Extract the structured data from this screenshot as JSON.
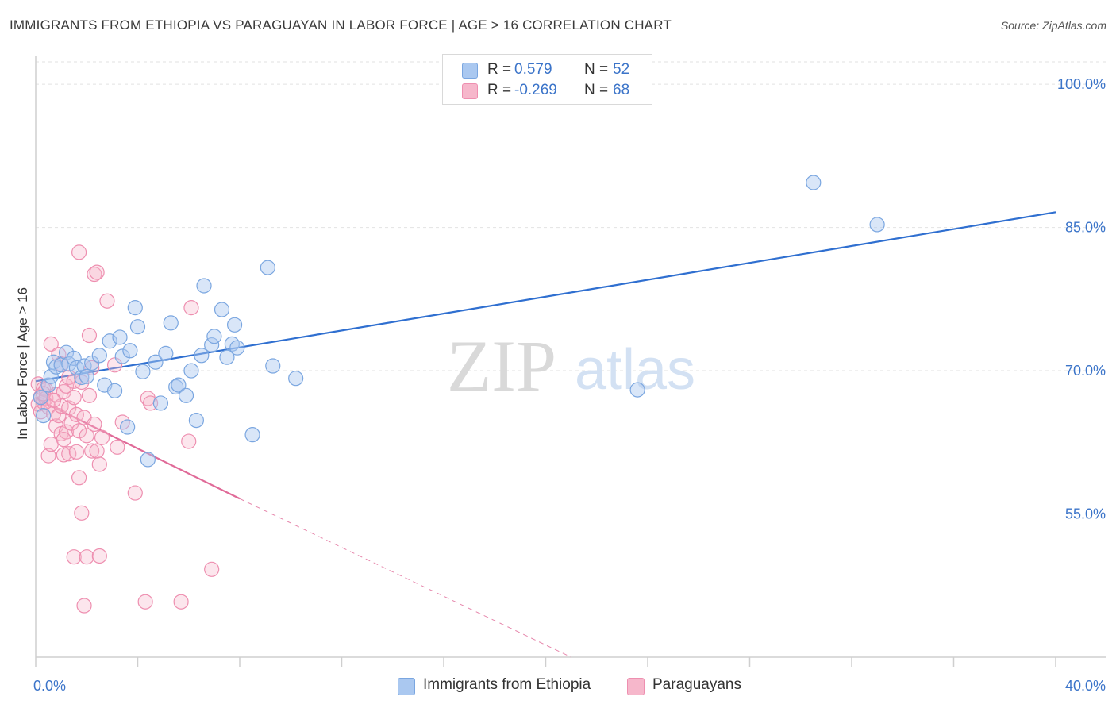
{
  "header": {
    "title": "IMMIGRANTS FROM ETHIOPIA VS PARAGUAYAN IN LABOR FORCE | AGE > 16 CORRELATION CHART",
    "source": "Source: ZipAtlas.com"
  },
  "legend": {
    "rows": [
      {
        "r_label": "R =",
        "r_value": "0.579",
        "n_label": "N =",
        "n_value": "52"
      },
      {
        "r_label": "R =",
        "r_value": "-0.269",
        "n_label": "N =",
        "n_value": "68"
      }
    ]
  },
  "bottom_legend": {
    "series1": "Immigrants from Ethiopia",
    "series2": "Paraguayans"
  },
  "watermark": {
    "zip": "ZIP",
    "atlas": "atlas"
  },
  "colors": {
    "blue_fill": "#aac8f0",
    "blue_stroke": "#7aa6e0",
    "blue_line": "#2f6fd0",
    "pink_fill": "#f6b7cb",
    "pink_stroke": "#ee8fb0",
    "pink_line": "#e06a98",
    "tick_label": "#3b74c9",
    "grid": "#e2e2e2"
  },
  "chart_data": {
    "type": "scatter",
    "title": "IMMIGRANTS FROM ETHIOPIA VS PARAGUAYAN IN LABOR FORCE | AGE > 16 CORRELATION CHART",
    "xlabel": "",
    "ylabel": "In Labor Force | Age > 16",
    "xlim": [
      0,
      40
    ],
    "ylim": [
      40,
      103
    ],
    "x_tick_labels": [
      "0.0%",
      "40.0%"
    ],
    "y_ticks": [
      55,
      70,
      85,
      100
    ],
    "y_tick_labels": [
      "55.0%",
      "70.0%",
      "85.0%",
      "100.0%"
    ],
    "grid": true,
    "legend_position": "top-center",
    "series": [
      {
        "name": "Immigrants from Ethiopia",
        "R": 0.579,
        "N": 52,
        "trend": {
          "x": [
            0.0,
            40.0
          ],
          "y": [
            68.9,
            86.6
          ],
          "extrapolated_to": 40.0
        },
        "points": [
          [
            0.2,
            67.2
          ],
          [
            0.3,
            65.3
          ],
          [
            0.5,
            68.5
          ],
          [
            0.6,
            69.4
          ],
          [
            0.7,
            70.9
          ],
          [
            0.8,
            70.4
          ],
          [
            1.0,
            70.6
          ],
          [
            1.2,
            71.9
          ],
          [
            1.3,
            70.7
          ],
          [
            1.5,
            71.3
          ],
          [
            1.6,
            70.3
          ],
          [
            1.8,
            69.3
          ],
          [
            1.9,
            70.5
          ],
          [
            2.0,
            69.4
          ],
          [
            2.2,
            70.8
          ],
          [
            2.5,
            71.6
          ],
          [
            2.7,
            68.5
          ],
          [
            2.9,
            73.1
          ],
          [
            3.1,
            67.9
          ],
          [
            3.3,
            73.5
          ],
          [
            3.4,
            71.5
          ],
          [
            3.6,
            64.1
          ],
          [
            3.7,
            72.1
          ],
          [
            3.9,
            76.6
          ],
          [
            4.0,
            74.6
          ],
          [
            4.2,
            69.9
          ],
          [
            4.4,
            60.7
          ],
          [
            4.7,
            70.9
          ],
          [
            4.9,
            66.6
          ],
          [
            5.1,
            71.8
          ],
          [
            5.3,
            75.0
          ],
          [
            5.5,
            68.3
          ],
          [
            5.6,
            68.5
          ],
          [
            5.9,
            67.4
          ],
          [
            6.1,
            70.0
          ],
          [
            6.3,
            64.8
          ],
          [
            6.5,
            71.6
          ],
          [
            6.6,
            78.9
          ],
          [
            6.9,
            72.7
          ],
          [
            7.0,
            73.6
          ],
          [
            7.3,
            76.4
          ],
          [
            7.5,
            71.4
          ],
          [
            7.7,
            72.8
          ],
          [
            7.8,
            74.8
          ],
          [
            7.9,
            72.4
          ],
          [
            8.5,
            63.3
          ],
          [
            9.1,
            80.8
          ],
          [
            9.3,
            70.5
          ],
          [
            10.2,
            69.2
          ],
          [
            23.6,
            68.0
          ],
          [
            30.5,
            89.7
          ],
          [
            33.0,
            85.3
          ]
        ]
      },
      {
        "name": "Paraguayans",
        "R": -0.269,
        "N": 68,
        "trend": {
          "x": [
            0.0,
            8.0
          ],
          "y": [
            67.1,
            56.6
          ],
          "dashed_x": [
            8.0,
            21.0
          ],
          "dashed_y": [
            56.6,
            40.0
          ]
        },
        "points": [
          [
            0.1,
            66.5
          ],
          [
            0.1,
            68.6
          ],
          [
            0.2,
            67.3
          ],
          [
            0.2,
            65.7
          ],
          [
            0.3,
            68.1
          ],
          [
            0.3,
            66.7
          ],
          [
            0.4,
            68.0
          ],
          [
            0.4,
            67.1
          ],
          [
            0.5,
            66.2
          ],
          [
            0.5,
            61.1
          ],
          [
            0.6,
            72.8
          ],
          [
            0.6,
            62.3
          ],
          [
            0.7,
            65.5
          ],
          [
            0.8,
            67.5
          ],
          [
            0.8,
            64.2
          ],
          [
            0.9,
            71.7
          ],
          [
            0.9,
            65.3
          ],
          [
            1.0,
            70.7
          ],
          [
            1.0,
            66.3
          ],
          [
            1.0,
            63.4
          ],
          [
            1.1,
            61.2
          ],
          [
            1.1,
            67.8
          ],
          [
            1.2,
            68.4
          ],
          [
            1.2,
            63.6
          ],
          [
            1.3,
            66.1
          ],
          [
            1.3,
            69.3
          ],
          [
            1.3,
            61.3
          ],
          [
            1.4,
            64.5
          ],
          [
            1.5,
            67.2
          ],
          [
            1.5,
            68.9
          ],
          [
            1.5,
            50.5
          ],
          [
            1.6,
            61.5
          ],
          [
            1.6,
            65.4
          ],
          [
            1.7,
            58.8
          ],
          [
            1.7,
            82.4
          ],
          [
            1.7,
            63.7
          ],
          [
            1.8,
            68.8
          ],
          [
            1.8,
            55.1
          ],
          [
            1.9,
            65.1
          ],
          [
            1.9,
            45.4
          ],
          [
            2.0,
            63.2
          ],
          [
            2.0,
            50.5
          ],
          [
            2.1,
            67.4
          ],
          [
            2.1,
            73.7
          ],
          [
            2.2,
            70.3
          ],
          [
            2.2,
            61.6
          ],
          [
            2.3,
            64.4
          ],
          [
            2.3,
            80.1
          ],
          [
            2.4,
            80.3
          ],
          [
            2.4,
            61.6
          ],
          [
            2.5,
            50.6
          ],
          [
            2.5,
            60.2
          ],
          [
            2.6,
            63.0
          ],
          [
            2.8,
            77.3
          ],
          [
            3.1,
            70.6
          ],
          [
            3.2,
            62.0
          ],
          [
            3.4,
            64.6
          ],
          [
            3.9,
            57.2
          ],
          [
            4.3,
            45.8
          ],
          [
            4.4,
            67.1
          ],
          [
            4.5,
            66.6
          ],
          [
            5.7,
            45.8
          ],
          [
            6.0,
            62.6
          ],
          [
            6.1,
            76.6
          ],
          [
            6.9,
            49.2
          ],
          [
            0.3,
            67.6
          ],
          [
            0.7,
            66.9
          ],
          [
            1.1,
            62.8
          ]
        ]
      }
    ]
  }
}
